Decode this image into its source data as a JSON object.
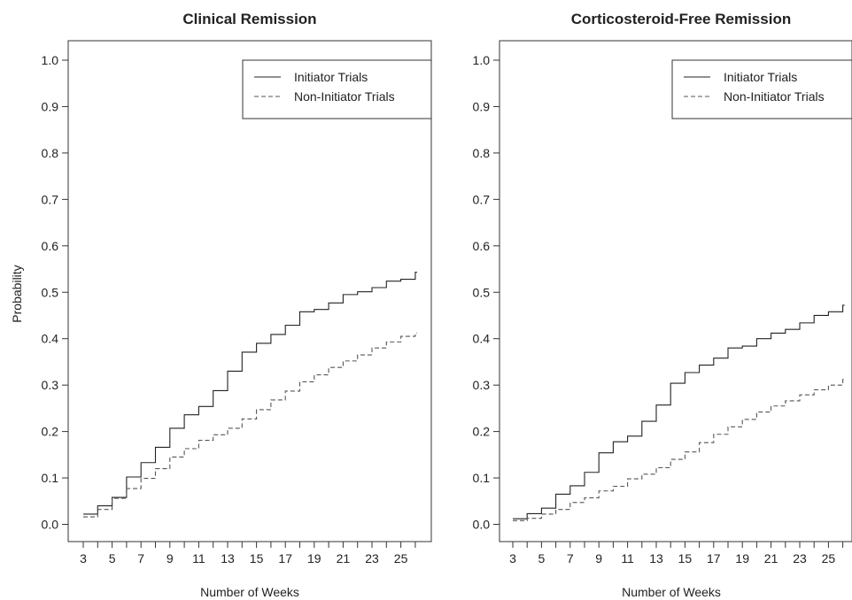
{
  "ylabel": "Probability",
  "chart_data": [
    {
      "type": "line",
      "step": true,
      "title": "Clinical Remission",
      "xlabel": "Number of Weeks",
      "ylabel": "Probability",
      "xlim": [
        3,
        26
      ],
      "ylim": [
        0,
        1
      ],
      "xticks": [
        3,
        4,
        5,
        6,
        7,
        8,
        9,
        10,
        11,
        12,
        13,
        14,
        15,
        16,
        17,
        18,
        19,
        20,
        21,
        22,
        23,
        24,
        25,
        26
      ],
      "xtick_labels": [
        "3",
        "5",
        "7",
        "9",
        "11",
        "13",
        "15",
        "17",
        "19",
        "21",
        "23",
        "25"
      ],
      "yticks": [
        "0.0",
        "0.1",
        "0.2",
        "0.3",
        "0.4",
        "0.5",
        "0.6",
        "0.7",
        "0.8",
        "0.9",
        "1.0"
      ],
      "legend_position": "top-right",
      "grid": false,
      "series": [
        {
          "name": "Initiator Trials",
          "style": "solid",
          "x": [
            3,
            4,
            5,
            6,
            7,
            8,
            9,
            10,
            11,
            12,
            13,
            14,
            15,
            16,
            17,
            18,
            19,
            20,
            21,
            22,
            23,
            24,
            25,
            26
          ],
          "y": [
            0.022,
            0.04,
            0.058,
            0.102,
            0.133,
            0.166,
            0.207,
            0.236,
            0.254,
            0.288,
            0.33,
            0.371,
            0.39,
            0.409,
            0.429,
            0.458,
            0.463,
            0.477,
            0.495,
            0.501,
            0.51,
            0.524,
            0.528,
            0.543
          ]
        },
        {
          "name": "Non-Initiator Trials",
          "style": "dashed",
          "x": [
            3,
            4,
            5,
            6,
            7,
            8,
            9,
            10,
            11,
            12,
            13,
            14,
            15,
            16,
            17,
            18,
            19,
            20,
            21,
            22,
            23,
            24,
            25,
            26
          ],
          "y": [
            0.016,
            0.032,
            0.056,
            0.077,
            0.099,
            0.12,
            0.145,
            0.163,
            0.181,
            0.193,
            0.207,
            0.227,
            0.247,
            0.268,
            0.287,
            0.307,
            0.322,
            0.338,
            0.352,
            0.365,
            0.38,
            0.393,
            0.405,
            0.412
          ]
        }
      ]
    },
    {
      "type": "line",
      "step": true,
      "title": "Corticosteroid-Free Remission",
      "xlabel": "Number of Weeks",
      "ylabel": "",
      "xlim": [
        3,
        26
      ],
      "ylim": [
        0,
        1
      ],
      "xticks": [
        3,
        4,
        5,
        6,
        7,
        8,
        9,
        10,
        11,
        12,
        13,
        14,
        15,
        16,
        17,
        18,
        19,
        20,
        21,
        22,
        23,
        24,
        25,
        26
      ],
      "xtick_labels": [
        "3",
        "5",
        "7",
        "9",
        "11",
        "13",
        "15",
        "17",
        "19",
        "21",
        "23",
        "25"
      ],
      "yticks": [
        "0.0",
        "0.1",
        "0.2",
        "0.3",
        "0.4",
        "0.5",
        "0.6",
        "0.7",
        "0.8",
        "0.9",
        "1.0"
      ],
      "legend_position": "top-right",
      "grid": false,
      "series": [
        {
          "name": "Initiator Trials",
          "style": "solid",
          "x": [
            3,
            4,
            5,
            6,
            7,
            8,
            9,
            10,
            11,
            12,
            13,
            14,
            15,
            16,
            17,
            18,
            19,
            20,
            21,
            22,
            23,
            24,
            25,
            26
          ],
          "y": [
            0.012,
            0.023,
            0.035,
            0.065,
            0.083,
            0.112,
            0.154,
            0.178,
            0.19,
            0.222,
            0.257,
            0.304,
            0.327,
            0.343,
            0.358,
            0.38,
            0.384,
            0.4,
            0.412,
            0.42,
            0.434,
            0.45,
            0.458,
            0.472
          ]
        },
        {
          "name": "Non-Initiator Trials",
          "style": "dashed",
          "x": [
            3,
            4,
            5,
            6,
            7,
            8,
            9,
            10,
            11,
            12,
            13,
            14,
            15,
            16,
            17,
            18,
            19,
            20,
            21,
            22,
            23,
            24,
            25,
            26
          ],
          "y": [
            0.008,
            0.013,
            0.022,
            0.032,
            0.047,
            0.057,
            0.072,
            0.082,
            0.098,
            0.108,
            0.122,
            0.14,
            0.156,
            0.176,
            0.194,
            0.21,
            0.226,
            0.242,
            0.255,
            0.266,
            0.279,
            0.29,
            0.3,
            0.312
          ]
        }
      ]
    }
  ]
}
